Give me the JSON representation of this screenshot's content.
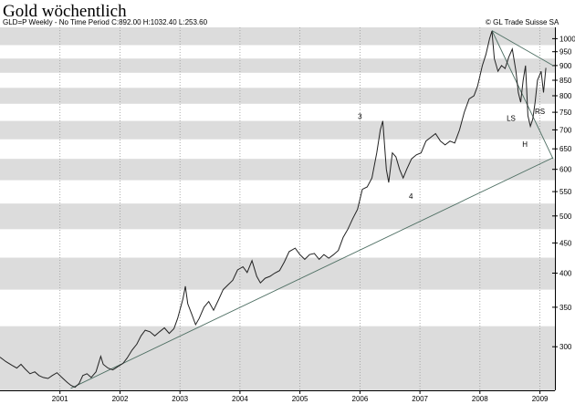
{
  "header": {
    "title": "Gold wöchentlich",
    "subtitle": "GLD=P Weekly - No Time Period   C:892.00 H:1032.40 L:253.60",
    "credit": "© GL Trade Suisse SA"
  },
  "chart_data": {
    "type": "line",
    "scale": "log",
    "ylim": [
      253,
      1045
    ],
    "xlim": [
      2000.0,
      2009.25
    ],
    "y_ticks": [
      300,
      350,
      400,
      450,
      500,
      550,
      600,
      650,
      700,
      750,
      800,
      850,
      900,
      950,
      1000
    ],
    "x_ticks": [
      "2001",
      "2002",
      "2003",
      "2004",
      "2005",
      "2006",
      "2007",
      "2008",
      "2009"
    ],
    "grid": "alternating horizontal bands",
    "colors": {
      "band": "#dcdcdc",
      "price": "#222222",
      "trendline": "#4d6e62"
    },
    "series": [
      {
        "values": [
          [
            2000.0,
            288
          ],
          [
            2000.1,
            283
          ],
          [
            2000.2,
            279
          ],
          [
            2000.28,
            276
          ],
          [
            2000.35,
            280
          ],
          [
            2000.42,
            275
          ],
          [
            2000.5,
            270
          ],
          [
            2000.58,
            272
          ],
          [
            2000.65,
            268
          ],
          [
            2000.72,
            266
          ],
          [
            2000.8,
            265
          ],
          [
            2000.87,
            268
          ],
          [
            2000.95,
            271
          ],
          [
            2001.05,
            265
          ],
          [
            2001.12,
            261
          ],
          [
            2001.18,
            258
          ],
          [
            2001.25,
            256
          ],
          [
            2001.32,
            260
          ],
          [
            2001.38,
            268
          ],
          [
            2001.45,
            270
          ],
          [
            2001.52,
            266
          ],
          [
            2001.6,
            272
          ],
          [
            2001.68,
            289
          ],
          [
            2001.72,
            280
          ],
          [
            2001.8,
            276
          ],
          [
            2001.88,
            274
          ],
          [
            2001.95,
            277
          ],
          [
            2002.05,
            281
          ],
          [
            2002.12,
            287
          ],
          [
            2002.2,
            296
          ],
          [
            2002.28,
            303
          ],
          [
            2002.35,
            313
          ],
          [
            2002.42,
            320
          ],
          [
            2002.5,
            318
          ],
          [
            2002.58,
            313
          ],
          [
            2002.66,
            318
          ],
          [
            2002.74,
            323
          ],
          [
            2002.82,
            316
          ],
          [
            2002.9,
            322
          ],
          [
            2002.96,
            335
          ],
          [
            2003.05,
            362
          ],
          [
            2003.09,
            380
          ],
          [
            2003.13,
            355
          ],
          [
            2003.2,
            340
          ],
          [
            2003.26,
            327
          ],
          [
            2003.32,
            335
          ],
          [
            2003.4,
            350
          ],
          [
            2003.48,
            358
          ],
          [
            2003.56,
            346
          ],
          [
            2003.64,
            360
          ],
          [
            2003.72,
            375
          ],
          [
            2003.8,
            382
          ],
          [
            2003.88,
            389
          ],
          [
            2003.96,
            405
          ],
          [
            2004.05,
            410
          ],
          [
            2004.12,
            401
          ],
          [
            2004.2,
            420
          ],
          [
            2004.28,
            395
          ],
          [
            2004.34,
            385
          ],
          [
            2004.42,
            392
          ],
          [
            2004.5,
            395
          ],
          [
            2004.58,
            400
          ],
          [
            2004.66,
            404
          ],
          [
            2004.74,
            418
          ],
          [
            2004.82,
            435
          ],
          [
            2004.92,
            441
          ],
          [
            2005.0,
            430
          ],
          [
            2005.08,
            422
          ],
          [
            2005.16,
            430
          ],
          [
            2005.24,
            432
          ],
          [
            2005.32,
            422
          ],
          [
            2005.4,
            430
          ],
          [
            2005.48,
            424
          ],
          [
            2005.56,
            430
          ],
          [
            2005.64,
            437
          ],
          [
            2005.72,
            460
          ],
          [
            2005.8,
            475
          ],
          [
            2005.88,
            495
          ],
          [
            2005.96,
            513
          ],
          [
            2006.04,
            555
          ],
          [
            2006.12,
            560
          ],
          [
            2006.2,
            580
          ],
          [
            2006.28,
            640
          ],
          [
            2006.34,
            700
          ],
          [
            2006.38,
            725
          ],
          [
            2006.44,
            600
          ],
          [
            2006.48,
            570
          ],
          [
            2006.54,
            640
          ],
          [
            2006.6,
            630
          ],
          [
            2006.66,
            600
          ],
          [
            2006.72,
            580
          ],
          [
            2006.78,
            600
          ],
          [
            2006.86,
            625
          ],
          [
            2006.94,
            635
          ],
          [
            2007.02,
            640
          ],
          [
            2007.1,
            670
          ],
          [
            2007.18,
            680
          ],
          [
            2007.26,
            690
          ],
          [
            2007.34,
            670
          ],
          [
            2007.42,
            660
          ],
          [
            2007.5,
            670
          ],
          [
            2007.58,
            665
          ],
          [
            2007.66,
            700
          ],
          [
            2007.74,
            750
          ],
          [
            2007.82,
            790
          ],
          [
            2007.9,
            800
          ],
          [
            2007.96,
            830
          ],
          [
            2008.04,
            900
          ],
          [
            2008.1,
            940
          ],
          [
            2008.16,
            1000
          ],
          [
            2008.2,
            1030
          ],
          [
            2008.24,
            925
          ],
          [
            2008.3,
            880
          ],
          [
            2008.36,
            900
          ],
          [
            2008.42,
            890
          ],
          [
            2008.48,
            930
          ],
          [
            2008.54,
            960
          ],
          [
            2008.6,
            880
          ],
          [
            2008.64,
            810
          ],
          [
            2008.68,
            780
          ],
          [
            2008.72,
            850
          ],
          [
            2008.76,
            900
          ],
          [
            2008.8,
            740
          ],
          [
            2008.84,
            710
          ],
          [
            2008.88,
            730
          ],
          [
            2008.92,
            780
          ],
          [
            2008.96,
            850
          ],
          [
            2009.02,
            880
          ],
          [
            2009.06,
            810
          ],
          [
            2009.1,
            892
          ]
        ]
      }
    ],
    "trendlines": [
      {
        "from": [
          2001.18,
          255
        ],
        "to": [
          2009.22,
          628
        ]
      },
      {
        "from": [
          2008.2,
          1032
        ],
        "to": [
          2009.22,
          900
        ]
      },
      {
        "from": [
          2008.2,
          1032
        ],
        "to": [
          2009.22,
          625
        ]
      }
    ],
    "annotations": [
      {
        "text": "3",
        "x": 2006.0,
        "y": 730
      },
      {
        "text": "4",
        "x": 2006.85,
        "y": 535
      },
      {
        "text": "LS",
        "x": 2008.52,
        "y": 725
      },
      {
        "text": "H",
        "x": 2008.75,
        "y": 655
      },
      {
        "text": "RS",
        "x": 2009.0,
        "y": 745
      }
    ]
  }
}
